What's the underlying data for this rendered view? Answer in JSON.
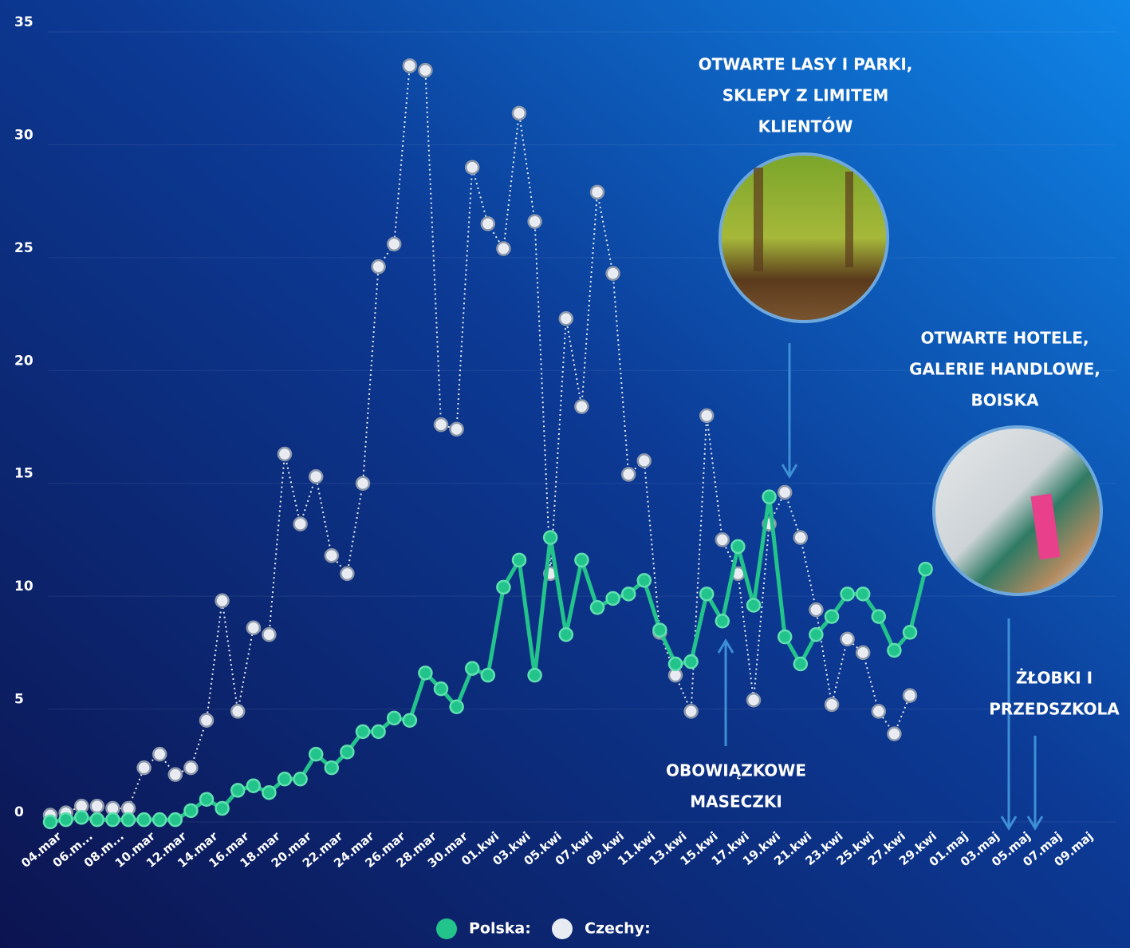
{
  "chart_data": {
    "type": "line",
    "categories": [
      "04.mar",
      null,
      "06.m...",
      null,
      "08.m...",
      null,
      "10.mar",
      null,
      "12.mar",
      null,
      "14.mar",
      null,
      "16.mar",
      null,
      "18.mar",
      null,
      "20.mar",
      null,
      "22.mar",
      null,
      "24.mar",
      null,
      "26.mar",
      null,
      "28.mar",
      null,
      "30.mar",
      null,
      "01.kwi",
      null,
      "03.kwi",
      null,
      "05.kwi",
      null,
      "07.kwi",
      null,
      "09.kwi",
      null,
      "11.kwi",
      null,
      "13.kwi",
      null,
      "15.kwi",
      null,
      "17.kwi",
      null,
      "19.kwi",
      null,
      "21.kwi",
      null,
      "23.kwi",
      null,
      "25.kwi",
      null,
      "27.kwi",
      null,
      "29.kwi",
      null,
      "01.maj",
      null,
      "03.maj",
      null,
      "05.maj",
      null,
      "07.maj",
      null,
      "09.maj"
    ],
    "series": [
      {
        "name": "Polska:",
        "color": "#22c48c",
        "values": [
          0,
          0.1,
          0.2,
          0.1,
          0.1,
          0.1,
          0.1,
          0.1,
          0.1,
          0.5,
          1.0,
          0.6,
          1.4,
          1.6,
          1.3,
          1.9,
          1.9,
          3.0,
          2.4,
          3.1,
          4.0,
          4.0,
          4.6,
          4.5,
          6.6,
          5.9,
          5.1,
          6.8,
          6.5,
          10.4,
          11.6,
          6.5,
          12.6,
          8.3,
          11.6,
          9.5,
          9.9,
          10.1,
          10.7,
          8.5,
          7.0,
          7.1,
          10.1,
          8.9,
          12.2,
          9.6,
          14.4,
          8.2,
          7.0,
          8.3,
          9.1,
          10.1,
          10.1,
          9.1,
          7.6,
          8.4,
          11.2,
          null,
          null,
          null,
          null,
          null,
          null,
          null,
          null,
          null,
          null
        ]
      },
      {
        "name": "Czechy:",
        "color": "#e8ecf2",
        "values": [
          0.3,
          0.4,
          0.7,
          0.7,
          0.6,
          0.6,
          2.4,
          3.0,
          2.1,
          2.4,
          4.5,
          9.8,
          4.9,
          8.6,
          8.3,
          16.3,
          13.2,
          15.3,
          11.8,
          11.0,
          15.0,
          24.6,
          25.6,
          33.5,
          33.3,
          17.6,
          17.4,
          29.0,
          26.5,
          25.4,
          31.4,
          26.6,
          11.0,
          22.3,
          18.4,
          27.9,
          24.3,
          15.4,
          16.0,
          8.4,
          6.5,
          4.9,
          18.0,
          12.5,
          11.0,
          5.4,
          13.2,
          14.6,
          12.6,
          9.4,
          5.2,
          8.1,
          7.5,
          4.9,
          3.9,
          5.6,
          null,
          null,
          null,
          null,
          null,
          null,
          null,
          null,
          null,
          null,
          null
        ]
      }
    ],
    "ylim": [
      0,
      35
    ],
    "yticks": [
      0,
      5,
      10,
      15,
      20,
      25,
      30,
      35
    ],
    "grid": true,
    "annotations": [
      [
        "OTWARTE LASY I PARKI,",
        "SKLEPY Z LIMITEM",
        "KLIENTÓW"
      ],
      [
        "OTWARTE HOTELE,",
        "GALERIE HANDLOWE,",
        "BOISKA"
      ],
      [
        "OBOWIĄZKOWE",
        "MASECZKI"
      ],
      [
        "ŻŁOBKI I",
        "PRZEDSZKOLA"
      ]
    ]
  }
}
